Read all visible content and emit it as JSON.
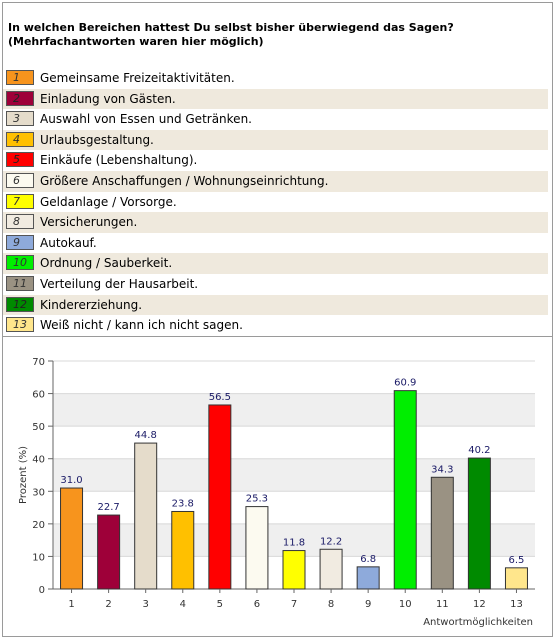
{
  "question": {
    "line1": "In welchen Bereichen hattest Du selbst bisher überwiegend das Sagen?",
    "line2": "(Mehrfachantworten waren hier möglich)"
  },
  "legend": [
    {
      "num": "1",
      "label": "Gemeinsame Freizeitaktivitäten.",
      "color": "#f7941d"
    },
    {
      "num": "2",
      "label": "Einladung von Gästen.",
      "color": "#9e0039"
    },
    {
      "num": "3",
      "label": "Auswahl von Essen und Getränken.",
      "color": "#e5dccb"
    },
    {
      "num": "4",
      "label": "Urlaubsgestaltung.",
      "color": "#ffc000"
    },
    {
      "num": "5",
      "label": "Einkäufe (Lebenshaltung).",
      "color": "#ff0000"
    },
    {
      "num": "6",
      "label": "Größere Anschaffungen / Wohnungseinrichtung.",
      "color": "#fcfaf0"
    },
    {
      "num": "7",
      "label": "Geldanlage / Vorsorge.",
      "color": "#ffff00"
    },
    {
      "num": "8",
      "label": "Versicherungen.",
      "color": "#f1ebe1"
    },
    {
      "num": "9",
      "label": "Autokauf.",
      "color": "#8eaadb"
    },
    {
      "num": "10",
      "label": "Ordnung / Sauberkeit.",
      "color": "#00ee00"
    },
    {
      "num": "11",
      "label": "Verteilung der Hausarbeit.",
      "color": "#9a9283"
    },
    {
      "num": "12",
      "label": "Kindererziehung.",
      "color": "#008a00"
    },
    {
      "num": "13",
      "label": "Weiß nicht / kann ich nicht sagen.",
      "color": "#ffe68c"
    }
  ],
  "chart_data": {
    "type": "bar",
    "categories": [
      "1",
      "2",
      "3",
      "4",
      "5",
      "6",
      "7",
      "8",
      "9",
      "10",
      "11",
      "12",
      "13"
    ],
    "values": [
      31.0,
      22.7,
      44.8,
      23.8,
      56.5,
      25.3,
      11.8,
      12.2,
      6.8,
      60.9,
      34.3,
      40.2,
      6.5
    ],
    "value_labels": [
      "31.0",
      "22.7",
      "44.8",
      "23.8",
      "56.5",
      "25.3",
      "11.8",
      "12.2",
      "6.8",
      "60.9",
      "34.3",
      "40.2",
      "6.5"
    ],
    "colors": [
      "#f7941d",
      "#9e0039",
      "#e5dccb",
      "#ffc000",
      "#ff0000",
      "#fcfaf0",
      "#ffff00",
      "#f1ebe1",
      "#8eaadb",
      "#00ee00",
      "#9a9283",
      "#008a00",
      "#ffe68c"
    ],
    "ylabel": "Prozent (%)",
    "xlabel": "Antwortmöglichkeiten",
    "ylim": [
      0,
      70
    ],
    "yticks": [
      "0",
      "10",
      "20",
      "30",
      "40",
      "50",
      "60",
      "70"
    ],
    "grid": true,
    "legend_position": "top"
  }
}
